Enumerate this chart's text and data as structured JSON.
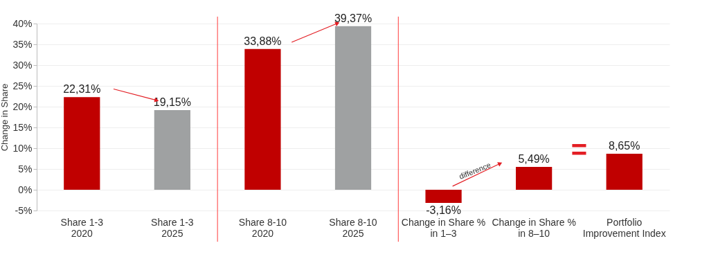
{
  "chart_data": {
    "type": "bar",
    "ylabel": "Change in Share",
    "categories": [
      "Share 1-3\n2020",
      "Share 1-3\n2025",
      "Share 8-10\n2020",
      "Share 8-10\n2025",
      "Change in Share %\nin 1–3",
      "Change in Share %\nin 8–10",
      "Portfolio\nImprovement Index"
    ],
    "values": [
      22.31,
      19.15,
      33.88,
      39.37,
      -3.16,
      5.49,
      8.65
    ],
    "colors": [
      "#c00000",
      "#9fa1a2",
      "#c00000",
      "#9fa1a2",
      "#c00000",
      "#c00000",
      "#c00000"
    ],
    "value_labels": [
      "22,31%",
      "19,15%",
      "33,88%",
      "39,37%",
      "-3,16%",
      "5,49%",
      "8,65%"
    ],
    "ylim": [
      -5,
      40
    ],
    "yticks": [
      {
        "value": -5,
        "label": "-5%"
      },
      {
        "value": 0,
        "label": "0%"
      },
      {
        "value": 5,
        "label": "5%"
      },
      {
        "value": 10,
        "label": "10%"
      },
      {
        "value": 15,
        "label": "15%"
      },
      {
        "value": 20,
        "label": "20%"
      },
      {
        "value": 25,
        "label": "25%"
      },
      {
        "value": 30,
        "label": "30%"
      },
      {
        "value": 35,
        "label": "35%"
      },
      {
        "value": 40,
        "label": "40%"
      }
    ],
    "grid": "y",
    "annotations": [
      "difference",
      "="
    ]
  }
}
